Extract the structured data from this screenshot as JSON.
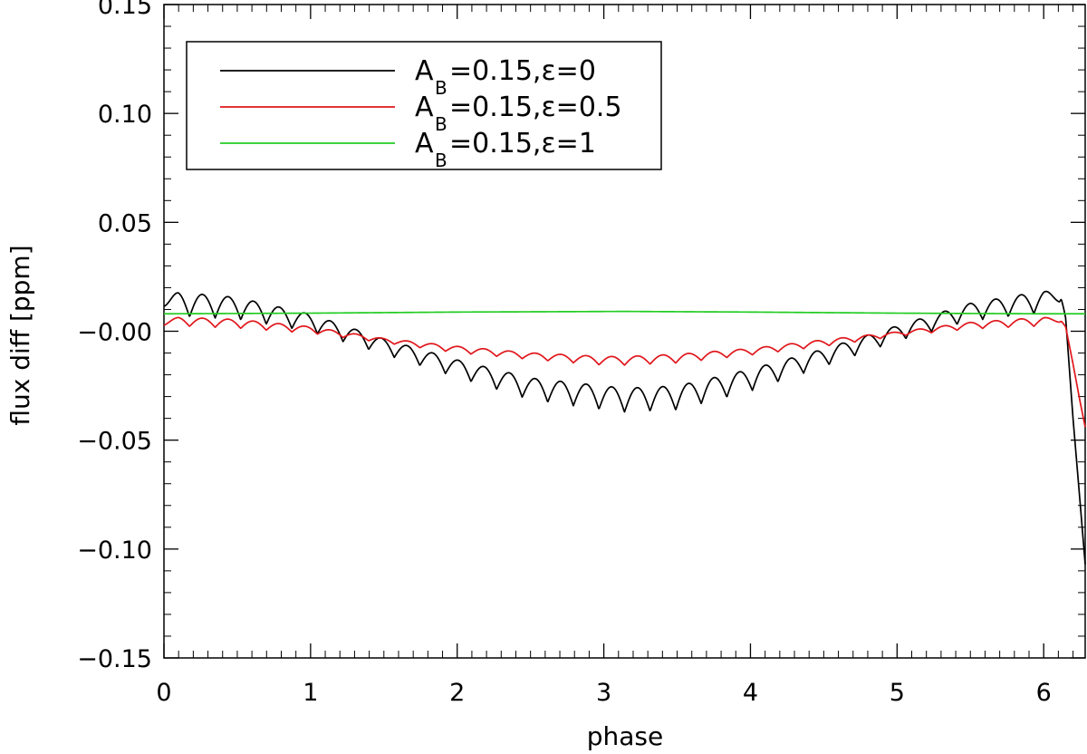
{
  "chart_data": {
    "type": "line",
    "xlabel": "phase",
    "ylabel": "flux diff [ppm]",
    "xlim": [
      0,
      6.283
    ],
    "ylim": [
      -0.15,
      0.15
    ],
    "x_ticks": [
      0,
      1,
      2,
      3,
      4,
      5,
      6
    ],
    "x_tick_labels": [
      "0",
      "1",
      "2",
      "3",
      "4",
      "5",
      "6"
    ],
    "y_ticks": [
      -0.15,
      -0.1,
      -0.05,
      0.0,
      0.05,
      0.1,
      0.15
    ],
    "y_tick_labels": [
      "−0.15",
      "−0.10",
      "−0.05",
      "−0.00",
      "0.05",
      "0.10",
      "0.15"
    ],
    "grid": false,
    "legend_position": "top-left",
    "series": [
      {
        "name": "A_B=0.15,ε=0",
        "legend": {
          "main": "A",
          "sub": "B",
          "rest": "=0.15,ε=0"
        },
        "color": "#000000",
        "ripple_period": 0.1745,
        "x": [
          0,
          0.1,
          0.5,
          1.0,
          1.5,
          2.0,
          2.5,
          3.0,
          3.14,
          3.5,
          4.0,
          4.5,
          5.0,
          5.5,
          6.0,
          6.12,
          6.15,
          6.2,
          6.25,
          6.283
        ],
        "envelope": [
          0.014,
          0.014,
          0.012,
          0.005,
          -0.006,
          -0.016,
          -0.025,
          -0.029,
          -0.03,
          -0.029,
          -0.021,
          -0.011,
          0.0,
          0.01,
          0.015,
          0.016,
          0.006,
          -0.04,
          -0.08,
          -0.107
        ],
        "ripple_amp": [
          0.004,
          0.011,
          0.01,
          0.008,
          0.007,
          0.008,
          0.01,
          0.011,
          0.011,
          0.011,
          0.01,
          0.008,
          0.007,
          0.008,
          0.01,
          0.003,
          0.0,
          0.0,
          0.0,
          0.0
        ]
      },
      {
        "name": "A_B=0.15,ε=0.5",
        "legend": {
          "main": "A",
          "sub": "B",
          "rest": "=0.15,ε=0.5"
        },
        "color": "#e0161b",
        "ripple_period": 0.1745,
        "x": [
          0,
          0.1,
          0.5,
          1.0,
          1.5,
          2.0,
          2.5,
          3.0,
          3.14,
          3.5,
          4.0,
          4.5,
          5.0,
          5.5,
          6.0,
          6.12,
          6.15,
          6.2,
          6.25,
          6.283
        ],
        "envelope": [
          0.004,
          0.005,
          0.004,
          0.001,
          -0.004,
          -0.008,
          -0.011,
          -0.013,
          -0.013,
          -0.012,
          -0.009,
          -0.005,
          -0.001,
          0.003,
          0.005,
          0.005,
          0.002,
          -0.015,
          -0.033,
          -0.044
        ],
        "ripple_amp": [
          0.002,
          0.004,
          0.004,
          0.003,
          0.002,
          0.003,
          0.003,
          0.004,
          0.004,
          0.004,
          0.003,
          0.003,
          0.002,
          0.003,
          0.004,
          0.001,
          0.0,
          0.0,
          0.0,
          0.0
        ]
      },
      {
        "name": "A_B=0.15,ε=1",
        "legend": {
          "main": "A",
          "sub": "B",
          "rest": "=0.15,ε=1"
        },
        "color": "#22cc22",
        "ripple_period": 0.1745,
        "x": [
          0,
          1.0,
          2.0,
          3.14,
          4.0,
          5.0,
          6.0,
          6.283
        ],
        "envelope": [
          0.008,
          0.0083,
          0.0088,
          0.0091,
          0.0088,
          0.0083,
          0.008,
          0.008
        ],
        "ripple_amp": [
          0,
          0,
          0,
          0,
          0,
          0,
          0,
          0
        ]
      }
    ]
  }
}
